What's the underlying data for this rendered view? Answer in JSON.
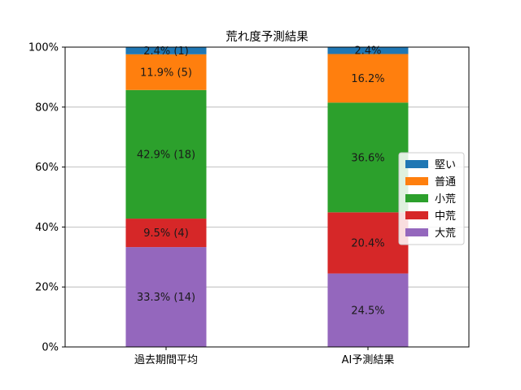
{
  "chart_data": {
    "type": "bar",
    "stacked": true,
    "title": "荒れ度予測結果",
    "xlabel": "",
    "ylabel": "",
    "categories": [
      "過去期間平均",
      "AI予測結果"
    ],
    "ylim": [
      0,
      100
    ],
    "yticks": [
      0,
      20,
      40,
      60,
      80,
      100
    ],
    "ytick_labels": [
      "0%",
      "20%",
      "40%",
      "60%",
      "80%",
      "100%"
    ],
    "grid": "horizontal",
    "legend_position": "center-right",
    "legend_order": [
      "堅い",
      "普通",
      "小荒",
      "中荒",
      "大荒"
    ],
    "series": [
      {
        "name": "大荒",
        "color": "#9467bd",
        "values": [
          33.3,
          24.5
        ],
        "labels": [
          "33.3% (14)",
          "24.5%"
        ]
      },
      {
        "name": "中荒",
        "color": "#d62728",
        "values": [
          9.5,
          20.4
        ],
        "labels": [
          "9.5% (4)",
          "20.4%"
        ]
      },
      {
        "name": "小荒",
        "color": "#2ca02c",
        "values": [
          42.9,
          36.6
        ],
        "labels": [
          "42.9% (18)",
          "36.6%"
        ]
      },
      {
        "name": "普通",
        "color": "#ff7f0e",
        "values": [
          11.9,
          16.2
        ],
        "labels": [
          "11.9% (5)",
          "16.2%"
        ]
      },
      {
        "name": "堅い",
        "color": "#1f77b4",
        "values": [
          2.4,
          2.4
        ],
        "labels": [
          "2.4% (1)",
          "2.4%"
        ]
      }
    ]
  }
}
